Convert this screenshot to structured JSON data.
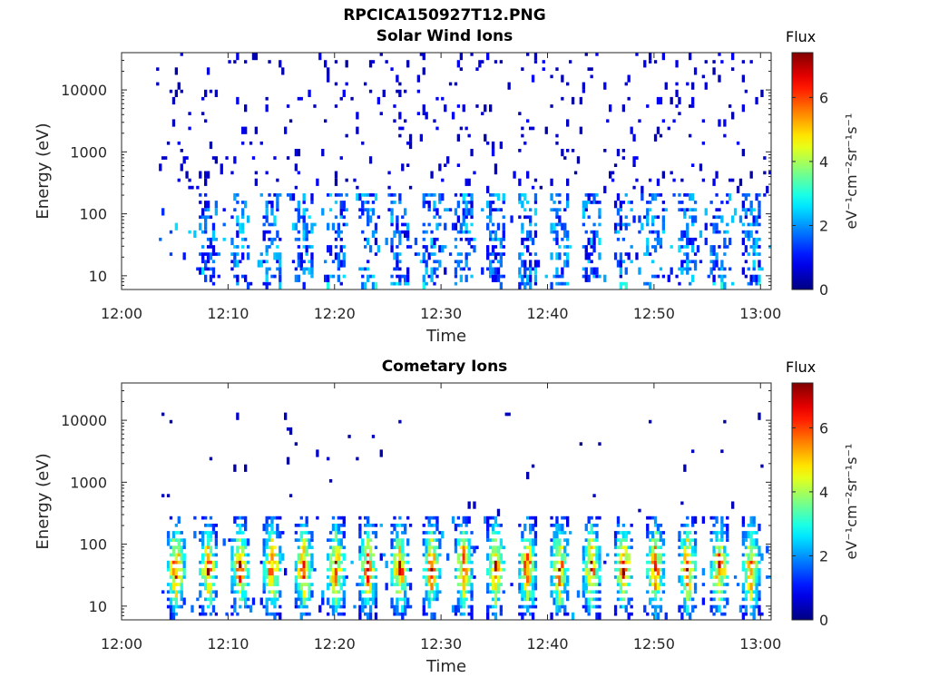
{
  "figure_title": "RPCICA150927T12.PNG",
  "chart_data": [
    {
      "type": "heatmap",
      "title": "Solar Wind Ions",
      "xlabel": "Time",
      "ylabel": "Energy (eV)",
      "x_range": [
        "12:00",
        "13:01"
      ],
      "x_ticks": [
        "12:00",
        "12:10",
        "12:20",
        "12:30",
        "12:40",
        "12:50",
        "13:00"
      ],
      "y_scale": "log",
      "y_range": [
        6,
        40000
      ],
      "y_ticks": [
        "10",
        "100",
        "1000",
        "10000"
      ],
      "colorbar": {
        "title": "Flux",
        "label": "eV⁻¹cm⁻²sr⁻¹s⁻¹",
        "range": [
          0,
          7.4
        ],
        "ticks": [
          "0",
          "2",
          "4",
          "6"
        ],
        "colormap": "jet"
      },
      "data_start": "12:03",
      "low_energy_band_eV": [
        8,
        200
      ],
      "low_energy_band_level": 2.0,
      "high_energy_scatter_eV": [
        200,
        40000
      ],
      "high_energy_scatter_level": 0.6,
      "burst_times": [
        "12:08",
        "12:11",
        "12:14",
        "12:17",
        "12:20",
        "12:23",
        "12:26",
        "12:29",
        "12:32",
        "12:35",
        "12:38",
        "12:41",
        "12:44",
        "12:47",
        "12:50",
        "12:53",
        "12:56",
        "12:59"
      ]
    },
    {
      "type": "heatmap",
      "title": "Cometary Ions",
      "xlabel": "Time",
      "ylabel": "Energy (eV)",
      "x_range": [
        "12:00",
        "13:01"
      ],
      "x_ticks": [
        "12:00",
        "12:10",
        "12:20",
        "12:30",
        "12:40",
        "12:50",
        "13:00"
      ],
      "y_scale": "log",
      "y_range": [
        6,
        40000
      ],
      "y_ticks": [
        "10",
        "100",
        "1000",
        "10000"
      ],
      "colorbar": {
        "title": "Flux",
        "label": "eV⁻¹cm⁻²sr⁻¹s⁻¹",
        "range": [
          0,
          7.4
        ],
        "ticks": [
          "0",
          "2",
          "4",
          "6"
        ],
        "colormap": "jet"
      },
      "data_start": "12:03",
      "band_peak_eV": 40,
      "band_peak_level": 6.5,
      "band_extent_eV": [
        6,
        300
      ],
      "high_energy_scatter_eV": [
        300,
        12000
      ],
      "high_energy_scatter_level": 0.4,
      "burst_times": [
        "12:05",
        "12:08",
        "12:11",
        "12:14",
        "12:17",
        "12:20",
        "12:23",
        "12:26",
        "12:29",
        "12:32",
        "12:35",
        "12:38",
        "12:41",
        "12:44",
        "12:47",
        "12:50",
        "12:53",
        "12:56",
        "12:59"
      ]
    }
  ]
}
